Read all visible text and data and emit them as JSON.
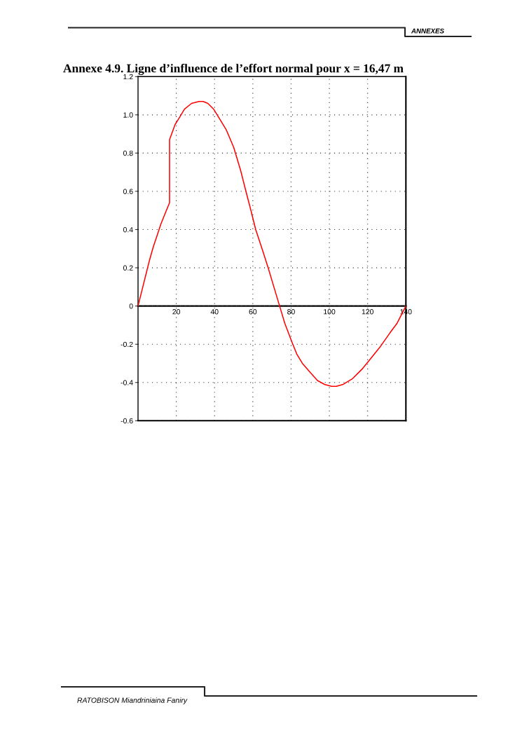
{
  "chart_data": {
    "type": "line",
    "title": "Annexe 4.9. Ligne d’influence de l’effort normal pour x = 16,47 m",
    "annotations": [
      "ANNEXES",
      "RATOBISON Miandriniaina Faniry"
    ],
    "x": [
      0,
      2,
      4,
      6,
      8,
      10,
      12,
      14,
      16.47,
      16.47,
      19.4,
      21.9,
      24.3,
      28,
      31.9,
      34,
      36.5,
      39.5,
      42.6,
      46.2,
      50,
      53.6,
      56.4,
      59,
      61.5,
      64.8,
      68,
      71,
      74,
      76.7,
      80.5,
      82.9,
      85.9,
      90.2,
      93.8,
      97.5,
      101.2,
      103.6,
      107.2,
      112.1,
      117.1,
      122,
      126.8,
      131.7,
      135.4,
      140
    ],
    "series": [
      {
        "color": "#ff0000",
        "values": [
          0,
          0.08,
          0.16,
          0.24,
          0.31,
          0.37,
          0.43,
          0.48,
          0.54,
          0.87,
          0.95,
          0.99,
          1.03,
          1.06,
          1.07,
          1.07,
          1.06,
          1.03,
          0.98,
          0.92,
          0.83,
          0.71,
          0.6,
          0.5,
          0.4,
          0.3,
          0.2,
          0.1,
          0,
          -0.09,
          -0.19,
          -0.25,
          -0.3,
          -0.35,
          -0.39,
          -0.41,
          -0.42,
          -0.42,
          -0.41,
          -0.38,
          -0.33,
          -0.27,
          -0.21,
          -0.14,
          -0.09,
          0
        ]
      }
    ],
    "xlim": [
      0,
      140
    ],
    "ylim": [
      -0.6,
      1.2
    ],
    "xticks": [
      20,
      40,
      60,
      80,
      100,
      120,
      140
    ],
    "yticks": [
      -0.6,
      -0.4,
      -0.2,
      0,
      0.2,
      0.4,
      0.6,
      0.8,
      {
        "value": 1,
        "label": "1.0"
      },
      1.2
    ],
    "grid": true,
    "line_style": "solid"
  }
}
